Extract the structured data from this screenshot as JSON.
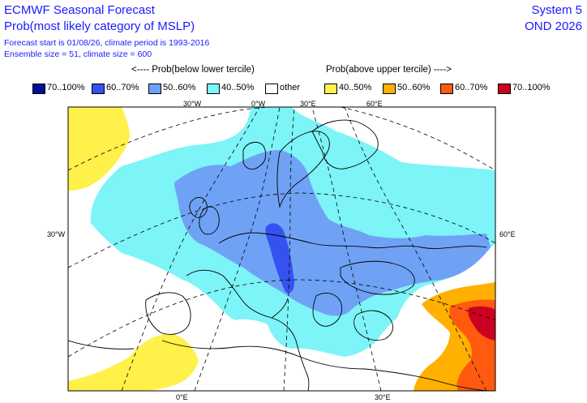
{
  "header": {
    "title": "ECMWF Seasonal Forecast",
    "subtitle": "Prob(most likely category of MSLP)",
    "info_line1": "Forecast start is 01/08/26, climate period is 1993-2016",
    "info_line2": "Ensemble size = 51, climate size = 600",
    "system": "System 5",
    "period": "OND 2026"
  },
  "legend_headers": {
    "below": "<---- Prob(below lower tercile)",
    "above": "Prob(above upper tercile) ---->"
  },
  "legend": [
    {
      "label": "70..100%",
      "color": "#000f9c"
    },
    {
      "label": "60..70%",
      "color": "#3552f0"
    },
    {
      "label": "50..60%",
      "color": "#6fa2f5"
    },
    {
      "label": "40..50%",
      "color": "#7df4f7"
    },
    {
      "label": "other",
      "color": "#ffffff"
    },
    {
      "label": "40..50%",
      "color": "#fff04a"
    },
    {
      "label": "50..60%",
      "color": "#ffb000"
    },
    {
      "label": "60..70%",
      "color": "#ff5a10"
    },
    {
      "label": "70..100%",
      "color": "#cc0020"
    }
  ],
  "map_labels": {
    "top": [
      "30°W",
      "0°W",
      "30°E",
      "60°E"
    ],
    "left": "30°W",
    "right": "60°E",
    "bottom": [
      "0°E",
      "30°E"
    ]
  },
  "map_colors": {
    "cyan": "#7df4f7",
    "lightblue": "#6fa2f5",
    "blue": "#3552f0",
    "yellow": "#fff04a",
    "orange": "#ffb000",
    "redorange": "#ff5a10",
    "red": "#cc0020"
  }
}
